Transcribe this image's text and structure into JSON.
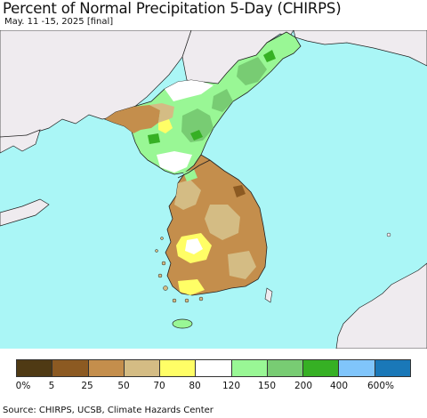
{
  "title": "Percent of Normal Precipitation 5-Day (CHIRPS)",
  "subtitle": "May. 11 -15, 2025 [final]",
  "source": "Source: CHIRPS, UCSB, Climate Hazards Center",
  "colors": {
    "ocean": "#aaf6f6",
    "foreign_land": "#efebef",
    "border": "#222222"
  },
  "legend": {
    "swatches": [
      "#4f3a14",
      "#8c5a22",
      "#c48e4c",
      "#d4bc84",
      "#fffe66",
      "#ffffff",
      "#99f795",
      "#78cc73",
      "#36b024",
      "#80c5fb",
      "#1a78b8"
    ],
    "labels": [
      "0%",
      "5",
      "25",
      "50",
      "70",
      "80",
      "120",
      "150",
      "200",
      "400",
      "600%"
    ]
  }
}
